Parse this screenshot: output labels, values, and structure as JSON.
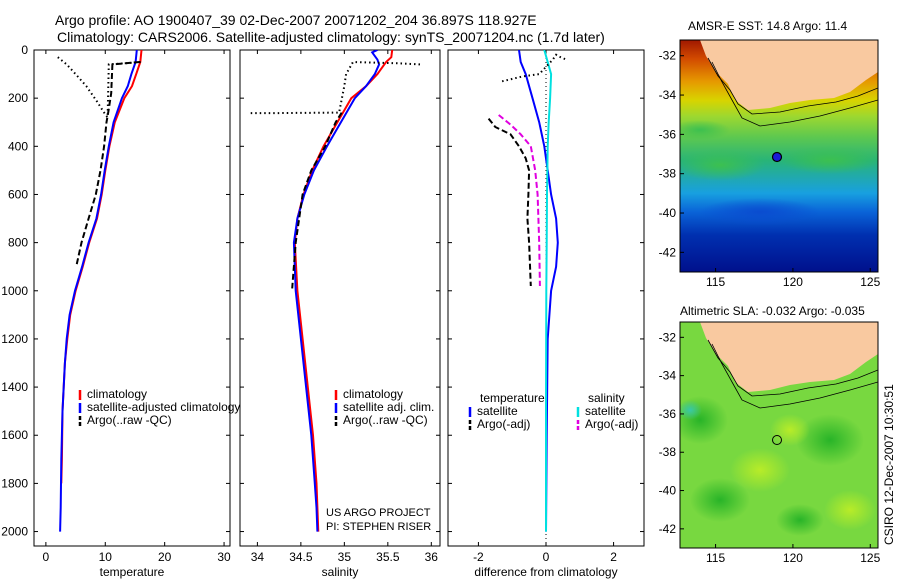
{
  "title": {
    "line1": "Argo profile: AO 1900407_39 02-Dec-2007 20071202_204 36.897S 118.927E",
    "line2": "Climatology: CARS2006. Satellite-adjusted climatology: synTS_20071204.nc (1.7d later)"
  },
  "credit": "CSIRO 12-Dec-2007 10:30:51",
  "project": {
    "line1": "US ARGO PROJECT",
    "line2": "PI: STEPHEN RISER"
  },
  "colors": {
    "climatology": "#ff0000",
    "satellite": "#0000ff",
    "argo": "#000000",
    "satellite_salinity_diff": "#00e0e0",
    "argo_salinity_diff": "#e000e0",
    "land": "#f9c9a0"
  },
  "chart_data": [
    {
      "type": "line",
      "name": "temperature-profile",
      "xlabel": "temperature",
      "ylabel": "",
      "xlim": [
        -2,
        31
      ],
      "ylim": [
        2060,
        0
      ],
      "xticks": [
        0,
        10,
        20,
        30
      ],
      "xtick_labels": [
        "0",
        "10",
        "20",
        "30"
      ],
      "yticks": [
        0,
        200,
        400,
        600,
        800,
        1000,
        1200,
        1400,
        1600,
        1800,
        2000
      ],
      "ytick_labels": [
        "0",
        "200",
        "400",
        "600",
        "800",
        "1000",
        "1200",
        "1400",
        "1600",
        "1800",
        "2000"
      ],
      "legend": [
        "climatology",
        "satellite-adjusted climatology",
        "Argo(..raw -QC)"
      ],
      "legend_location": "lower-left",
      "series": [
        {
          "name": "climatology",
          "style": "solid",
          "color": "#ff0000",
          "x": [
            16.1,
            15.9,
            15.2,
            14.5,
            13.2,
            11.6,
            10.7,
            10.0,
            9.4,
            8.6,
            7.3,
            6.2,
            5.0,
            4.1,
            3.6,
            3.2,
            3.0,
            2.8,
            2.7,
            2.6
          ],
          "y": [
            0,
            50,
            100,
            150,
            200,
            300,
            400,
            500,
            600,
            700,
            800,
            900,
            1000,
            1100,
            1200,
            1300,
            1400,
            1500,
            1700,
            1800
          ]
        },
        {
          "name": "satellite-adjusted climatology",
          "style": "solid",
          "color": "#0000ff",
          "x": [
            15.3,
            15.1,
            14.4,
            13.8,
            12.8,
            11.4,
            10.6,
            9.9,
            9.3,
            8.5,
            7.2,
            6.1,
            4.9,
            4.0,
            3.5,
            3.2,
            3.0,
            2.8,
            2.6,
            2.5,
            2.4
          ],
          "y": [
            0,
            50,
            100,
            150,
            200,
            300,
            400,
            500,
            600,
            700,
            800,
            900,
            1000,
            1100,
            1200,
            1300,
            1400,
            1500,
            1700,
            1900,
            2000
          ]
        },
        {
          "name": "Argo(..raw -QC)",
          "style": "dashed",
          "color": "#000000",
          "x": [
            15.8,
            11.2,
            11.1,
            11.0,
            10.5,
            10.2,
            9.8,
            9.2,
            8.4,
            7.2,
            6.0,
            5.1
          ],
          "y": [
            50,
            60,
            120,
            180,
            260,
            300,
            400,
            500,
            600,
            700,
            800,
            900
          ]
        },
        {
          "name": "Argo raw",
          "style": "dotted",
          "color": "#000000",
          "x": [
            2.0,
            3.5,
            5.0,
            6.8,
            8.5,
            9.8,
            10.4,
            10.6,
            13.5,
            16.0
          ],
          "y": [
            30,
            60,
            100,
            150,
            210,
            260,
            280,
            60,
            55,
            50
          ]
        }
      ]
    },
    {
      "type": "line",
      "name": "salinity-profile",
      "xlabel": "salinity",
      "ylabel": "",
      "xlim": [
        33.8,
        36.1
      ],
      "ylim": [
        2060,
        0
      ],
      "xticks": [
        34,
        34.5,
        35,
        35.5,
        36
      ],
      "xtick_labels": [
        "34",
        "34.5",
        "35",
        "35.5",
        "36"
      ],
      "legend": [
        "climatology",
        "satellite adj. clim.",
        "Argo(..raw -QC)"
      ],
      "legend_location": "lower-right",
      "series": [
        {
          "name": "climatology",
          "style": "solid",
          "color": "#ff0000",
          "x": [
            35.55,
            35.54,
            35.48,
            35.38,
            35.25,
            35.08,
            34.92,
            34.76,
            34.63,
            34.53,
            34.46,
            34.43,
            34.46,
            34.52,
            34.58,
            34.64,
            34.68,
            34.69,
            34.7
          ],
          "y": [
            0,
            30,
            50,
            100,
            150,
            200,
            300,
            400,
            500,
            600,
            700,
            800,
            1000,
            1200,
            1400,
            1600,
            1800,
            1900,
            2000
          ]
        },
        {
          "name": "satellite adj. clim.",
          "style": "solid",
          "color": "#0000ff",
          "x": [
            35.38,
            35.32,
            35.38,
            35.4,
            35.35,
            35.25,
            35.12,
            34.96,
            34.8,
            34.65,
            34.54,
            34.46,
            34.42,
            34.44,
            34.5,
            34.56,
            34.62,
            34.66,
            34.68,
            34.69
          ],
          "y": [
            0,
            10,
            40,
            60,
            100,
            150,
            200,
            300,
            400,
            500,
            600,
            700,
            800,
            1000,
            1200,
            1400,
            1600,
            1800,
            1900,
            2000
          ]
        },
        {
          "name": "Argo(..raw -QC)",
          "style": "dashed",
          "color": "#000000",
          "x": [
            34.97,
            34.9,
            34.78,
            34.62,
            34.52,
            34.44,
            34.4
          ],
          "y": [
            260,
            300,
            400,
            500,
            600,
            800,
            990
          ]
        },
        {
          "name": "Argo raw",
          "style": "dotted",
          "color": "#000000",
          "x": [
            35.87,
            35.6,
            35.1,
            35.02,
            35.0,
            34.94,
            34.2,
            33.9
          ],
          "y": [
            60,
            55,
            50,
            100,
            150,
            260,
            262,
            262
          ]
        }
      ]
    },
    {
      "type": "line",
      "name": "difference-profile",
      "xlabel": "difference from climatology",
      "ylabel": "",
      "xlim": [
        -2.9,
        2.9
      ],
      "ylim": [
        2060,
        0
      ],
      "xticks": [
        -2,
        0,
        2
      ],
      "xtick_labels": [
        "-2",
        "0",
        "2"
      ],
      "legend": [
        "temperature",
        "satellite",
        "Argo(-adj)",
        "salinity",
        "satellite",
        "Argo(-adj)"
      ],
      "legend_location": "lower-center",
      "series": [
        {
          "name": "temperature satellite",
          "style": "solid",
          "color": "#0000ff",
          "x": [
            -0.8,
            -0.75,
            -0.6,
            -0.4,
            -0.2,
            -0.05,
            0.05,
            0.15,
            0.3,
            0.35,
            0.3,
            0.15,
            0.05,
            0.02,
            0.0
          ],
          "y": [
            0,
            50,
            100,
            200,
            300,
            400,
            500,
            600,
            700,
            800,
            900,
            1000,
            1200,
            1600,
            2000
          ]
        },
        {
          "name": "temperature Argo(-adj)",
          "style": "dashed",
          "color": "#000000",
          "x": [
            -1.7,
            -1.5,
            -1.05,
            -0.8,
            -0.6,
            -0.5,
            -0.52,
            -0.55,
            -0.5,
            -0.45
          ],
          "y": [
            285,
            320,
            350,
            400,
            450,
            500,
            600,
            700,
            800,
            980
          ]
        },
        {
          "name": "salinity satellite",
          "style": "solid",
          "color": "#00e0e0",
          "x": [
            -0.05,
            0.05,
            0.15,
            0.12,
            0.08,
            0.05,
            0.03,
            0.02,
            0.01,
            0.0,
            0.0
          ],
          "y": [
            0,
            50,
            100,
            200,
            300,
            400,
            600,
            800,
            1000,
            1500,
            2000
          ]
        },
        {
          "name": "salinity Argo(-adj)",
          "style": "dashed",
          "color": "#e000e0",
          "x": [
            -1.4,
            -1.05,
            -0.75,
            -0.45,
            -0.32,
            -0.25,
            -0.2,
            -0.18
          ],
          "y": [
            270,
            310,
            350,
            400,
            500,
            600,
            800,
            980
          ]
        },
        {
          "name": "Argo raw",
          "style": "dotted",
          "color": "#000000",
          "x": [
            -1.3,
            -0.7,
            -0.45,
            -0.2,
            0.2,
            0.3,
            0.35,
            0.6
          ],
          "y": [
            130,
            110,
            105,
            100,
            40,
            20,
            25,
            40
          ]
        }
      ]
    },
    {
      "type": "heatmap",
      "name": "sst-map",
      "title": "AMSR-E SST: 14.8 Argo: 11.4",
      "xlim": [
        112.7,
        125.5
      ],
      "ylim": [
        -43,
        -31.2
      ],
      "xticks": [
        115,
        120,
        125
      ],
      "xtick_labels": [
        "115",
        "120",
        "125"
      ],
      "yticks": [
        -32,
        -34,
        -36,
        -38,
        -40,
        -42
      ],
      "ytick_labels": [
        "-32",
        "-34",
        "-36",
        "-38",
        "-40",
        "-42"
      ],
      "float_position": {
        "lon": 118.927,
        "lat": -36.897
      }
    },
    {
      "type": "heatmap",
      "name": "sla-map",
      "title": "Altimetric SLA: -0.032 Argo: -0.035",
      "xlim": [
        112.7,
        125.5
      ],
      "ylim": [
        -43,
        -31.2
      ],
      "xticks": [
        115,
        120,
        125
      ],
      "xtick_labels": [
        "115",
        "120",
        "125"
      ],
      "yticks": [
        -32,
        -34,
        -36,
        -38,
        -40,
        -42
      ],
      "ytick_labels": [
        "-32",
        "-34",
        "-36",
        "-38",
        "-40",
        "-42"
      ],
      "float_position": {
        "lon": 118.927,
        "lat": -36.897
      }
    }
  ]
}
